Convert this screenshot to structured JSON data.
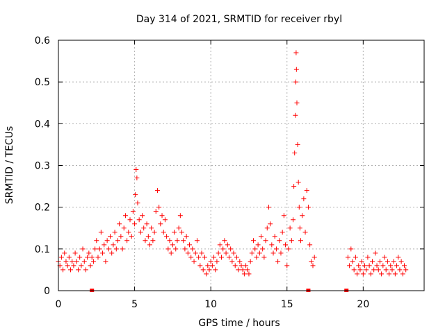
{
  "chart_data": {
    "type": "scatter",
    "title": "Day 314 of 2021, SRMTID for receiver rbyl",
    "xlabel": "GPS time / hours",
    "ylabel": "SRMTID / TECUs",
    "xlim": [
      0,
      24
    ],
    "ylim": [
      0,
      0.6
    ],
    "xticks": [
      0,
      5,
      10,
      15,
      20
    ],
    "yticks": [
      0,
      0.1,
      0.2,
      0.3,
      0.4,
      0.5,
      0.6
    ],
    "xtick_labels": [
      "0",
      "5",
      "10",
      "15",
      "20"
    ],
    "ytick_labels": [
      "0",
      "0.1",
      "0.2",
      "0.3",
      "0.4",
      "0.5",
      "0.6"
    ],
    "grid": true,
    "marker": "+",
    "color": "#ff0000",
    "series": [
      {
        "name": "SRMTID",
        "points": [
          [
            0.0,
            0.07
          ],
          [
            0.1,
            0.06
          ],
          [
            0.2,
            0.08
          ],
          [
            0.3,
            0.05
          ],
          [
            0.4,
            0.09
          ],
          [
            0.5,
            0.07
          ],
          [
            0.6,
            0.06
          ],
          [
            0.7,
            0.08
          ],
          [
            0.8,
            0.05
          ],
          [
            0.9,
            0.07
          ],
          [
            1.0,
            0.06
          ],
          [
            1.1,
            0.09
          ],
          [
            1.2,
            0.07
          ],
          [
            1.3,
            0.05
          ],
          [
            1.4,
            0.08
          ],
          [
            1.5,
            0.06
          ],
          [
            1.6,
            0.1
          ],
          [
            1.7,
            0.07
          ],
          [
            1.8,
            0.05
          ],
          [
            1.9,
            0.08
          ],
          [
            2.0,
            0.09
          ],
          [
            2.1,
            0.06
          ],
          [
            2.2,
            0.08
          ],
          [
            2.3,
            0.07
          ],
          [
            2.4,
            0.1
          ],
          [
            2.5,
            0.12
          ],
          [
            2.6,
            0.08
          ],
          [
            2.7,
            0.1
          ],
          [
            2.8,
            0.14
          ],
          [
            2.9,
            0.09
          ],
          [
            3.0,
            0.11
          ],
          [
            3.1,
            0.07
          ],
          [
            3.2,
            0.12
          ],
          [
            3.3,
            0.1
          ],
          [
            3.4,
            0.13
          ],
          [
            3.5,
            0.09
          ],
          [
            3.6,
            0.11
          ],
          [
            3.7,
            0.14
          ],
          [
            3.8,
            0.1
          ],
          [
            3.9,
            0.12
          ],
          [
            4.0,
            0.16
          ],
          [
            4.1,
            0.13
          ],
          [
            4.2,
            0.1
          ],
          [
            4.3,
            0.15
          ],
          [
            4.4,
            0.18
          ],
          [
            4.5,
            0.12
          ],
          [
            4.6,
            0.14
          ],
          [
            4.7,
            0.17
          ],
          [
            4.8,
            0.13
          ],
          [
            4.9,
            0.19
          ],
          [
            5.0,
            0.16
          ],
          [
            5.05,
            0.23
          ],
          [
            5.1,
            0.29
          ],
          [
            5.15,
            0.27
          ],
          [
            5.2,
            0.21
          ],
          [
            5.3,
            0.17
          ],
          [
            5.4,
            0.14
          ],
          [
            5.5,
            0.18
          ],
          [
            5.6,
            0.15
          ],
          [
            5.7,
            0.12
          ],
          [
            5.8,
            0.16
          ],
          [
            5.9,
            0.13
          ],
          [
            6.0,
            0.11
          ],
          [
            6.1,
            0.15
          ],
          [
            6.2,
            0.12
          ],
          [
            6.3,
            0.14
          ],
          [
            6.4,
            0.19
          ],
          [
            6.5,
            0.24
          ],
          [
            6.6,
            0.2
          ],
          [
            6.7,
            0.16
          ],
          [
            6.8,
            0.18
          ],
          [
            6.9,
            0.14
          ],
          [
            7.0,
            0.17
          ],
          [
            7.1,
            0.13
          ],
          [
            7.2,
            0.1
          ],
          [
            7.3,
            0.12
          ],
          [
            7.4,
            0.09
          ],
          [
            7.5,
            0.11
          ],
          [
            7.6,
            0.14
          ],
          [
            7.7,
            0.1
          ],
          [
            7.8,
            0.12
          ],
          [
            7.9,
            0.15
          ],
          [
            8.0,
            0.18
          ],
          [
            8.1,
            0.14
          ],
          [
            8.2,
            0.12
          ],
          [
            8.3,
            0.1
          ],
          [
            8.4,
            0.13
          ],
          [
            8.5,
            0.09
          ],
          [
            8.6,
            0.11
          ],
          [
            8.7,
            0.08
          ],
          [
            8.8,
            0.1
          ],
          [
            8.9,
            0.07
          ],
          [
            9.0,
            0.09
          ],
          [
            9.1,
            0.12
          ],
          [
            9.2,
            0.08
          ],
          [
            9.3,
            0.06
          ],
          [
            9.4,
            0.09
          ],
          [
            9.5,
            0.05
          ],
          [
            9.6,
            0.08
          ],
          [
            9.7,
            0.04
          ],
          [
            9.8,
            0.06
          ],
          [
            9.9,
            0.05
          ],
          [
            10.0,
            0.07
          ],
          [
            10.1,
            0.06
          ],
          [
            10.2,
            0.08
          ],
          [
            10.3,
            0.05
          ],
          [
            10.4,
            0.07
          ],
          [
            10.5,
            0.09
          ],
          [
            10.6,
            0.11
          ],
          [
            10.7,
            0.08
          ],
          [
            10.8,
            0.1
          ],
          [
            10.9,
            0.12
          ],
          [
            11.0,
            0.09
          ],
          [
            11.1,
            0.11
          ],
          [
            11.2,
            0.08
          ],
          [
            11.3,
            0.1
          ],
          [
            11.4,
            0.07
          ],
          [
            11.5,
            0.09
          ],
          [
            11.6,
            0.06
          ],
          [
            11.7,
            0.08
          ],
          [
            11.8,
            0.05
          ],
          [
            11.9,
            0.07
          ],
          [
            12.0,
            0.06
          ],
          [
            12.1,
            0.05
          ],
          [
            12.2,
            0.04
          ],
          [
            12.3,
            0.06
          ],
          [
            12.4,
            0.05
          ],
          [
            12.5,
            0.04
          ],
          [
            12.6,
            0.07
          ],
          [
            12.7,
            0.09
          ],
          [
            12.8,
            0.12
          ],
          [
            12.9,
            0.1
          ],
          [
            13.0,
            0.08
          ],
          [
            13.1,
            0.11
          ],
          [
            13.2,
            0.09
          ],
          [
            13.3,
            0.13
          ],
          [
            13.4,
            0.1
          ],
          [
            13.5,
            0.08
          ],
          [
            13.6,
            0.12
          ],
          [
            13.7,
            0.15
          ],
          [
            13.8,
            0.2
          ],
          [
            13.9,
            0.16
          ],
          [
            14.0,
            0.11
          ],
          [
            14.1,
            0.09
          ],
          [
            14.2,
            0.13
          ],
          [
            14.3,
            0.1
          ],
          [
            14.4,
            0.07
          ],
          [
            14.5,
            0.12
          ],
          [
            14.6,
            0.09
          ],
          [
            14.7,
            0.14
          ],
          [
            14.8,
            0.18
          ],
          [
            14.9,
            0.11
          ],
          [
            15.0,
            0.06
          ],
          [
            15.1,
            0.1
          ],
          [
            15.2,
            0.15
          ],
          [
            15.3,
            0.12
          ],
          [
            15.4,
            0.17
          ],
          [
            15.45,
            0.25
          ],
          [
            15.5,
            0.33
          ],
          [
            15.55,
            0.42
          ],
          [
            15.58,
            0.5
          ],
          [
            15.6,
            0.57
          ],
          [
            15.62,
            0.53
          ],
          [
            15.65,
            0.45
          ],
          [
            15.7,
            0.35
          ],
          [
            15.75,
            0.26
          ],
          [
            15.8,
            0.2
          ],
          [
            15.85,
            0.15
          ],
          [
            15.9,
            0.12
          ],
          [
            16.0,
            0.18
          ],
          [
            16.1,
            0.22
          ],
          [
            16.2,
            0.14
          ],
          [
            16.3,
            0.24
          ],
          [
            16.4,
            0.2
          ],
          [
            16.5,
            0.11
          ],
          [
            16.6,
            0.07
          ],
          [
            16.7,
            0.06
          ],
          [
            16.8,
            0.08
          ],
          [
            19.0,
            0.08
          ],
          [
            19.1,
            0.06
          ],
          [
            19.2,
            0.1
          ],
          [
            19.3,
            0.07
          ],
          [
            19.4,
            0.05
          ],
          [
            19.5,
            0.08
          ],
          [
            19.6,
            0.04
          ],
          [
            19.7,
            0.06
          ],
          [
            19.8,
            0.05
          ],
          [
            19.9,
            0.07
          ],
          [
            20.0,
            0.04
          ],
          [
            20.1,
            0.06
          ],
          [
            20.2,
            0.05
          ],
          [
            20.3,
            0.08
          ],
          [
            20.4,
            0.06
          ],
          [
            20.5,
            0.04
          ],
          [
            20.6,
            0.07
          ],
          [
            20.7,
            0.05
          ],
          [
            20.8,
            0.09
          ],
          [
            20.9,
            0.06
          ],
          [
            21.0,
            0.05
          ],
          [
            21.1,
            0.07
          ],
          [
            21.2,
            0.04
          ],
          [
            21.3,
            0.06
          ],
          [
            21.4,
            0.08
          ],
          [
            21.5,
            0.05
          ],
          [
            21.6,
            0.07
          ],
          [
            21.7,
            0.04
          ],
          [
            21.8,
            0.06
          ],
          [
            21.9,
            0.05
          ],
          [
            22.0,
            0.07
          ],
          [
            22.1,
            0.04
          ],
          [
            22.2,
            0.06
          ],
          [
            22.3,
            0.08
          ],
          [
            22.4,
            0.05
          ],
          [
            22.5,
            0.07
          ],
          [
            22.6,
            0.04
          ],
          [
            22.7,
            0.06
          ],
          [
            22.8,
            0.05
          ]
        ]
      }
    ],
    "baseline_markers": [
      2.2,
      16.4,
      18.9
    ]
  }
}
